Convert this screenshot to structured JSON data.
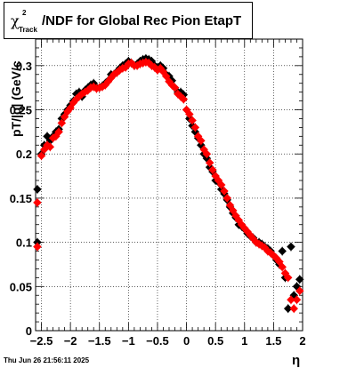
{
  "title": {
    "chi_symbol": "χ",
    "superscript": "2",
    "subscript": "Track",
    "main": "/NDF for Global Rec Pion EtapT"
  },
  "footer_text": "Thu Jun 26 21:56:11 2025",
  "chart_data": {
    "type": "scatter",
    "title": "χ²_Track/NDF for Global Rec Pion EtapT",
    "xlabel": "η",
    "ylabel": "pT/|q| (GeV/c",
    "xlim": [
      -2.6,
      2.0
    ],
    "ylim": [
      0.0,
      0.33
    ],
    "grid": true,
    "x_ticks": [
      -2.5,
      -2,
      -1.5,
      -1,
      -0.5,
      0,
      0.5,
      1,
      1.5,
      2
    ],
    "x_tick_labels": [
      "−2.5",
      "−2",
      "−1.5",
      "−1",
      "−0.5",
      "0",
      "0.5",
      "1",
      "1.5",
      "2"
    ],
    "y_ticks": [
      0,
      0.05,
      0.1,
      0.15,
      0.2,
      0.25,
      0.3
    ],
    "y_tick_labels": [
      "0",
      "0.05",
      "0.1",
      "0.15",
      "0.2",
      "0.25",
      "0.3"
    ],
    "colors": {
      "series_a": "#000000",
      "series_b": "#ff0000"
    },
    "series": [
      {
        "color": "black",
        "marker": "diamond",
        "x": [
          -2.57,
          -2.57,
          -2.5,
          -2.45,
          -2.4,
          -2.35,
          -2.3,
          -2.25,
          -2.2,
          -2.15,
          -2.1,
          -2.05,
          -2.0,
          -1.95,
          -1.9,
          -1.85,
          -1.8,
          -1.75,
          -1.7,
          -1.65,
          -1.6,
          -1.55,
          -1.5,
          -1.45,
          -1.4,
          -1.35,
          -1.3,
          -1.25,
          -1.2,
          -1.15,
          -1.1,
          -1.05,
          -1.0,
          -0.95,
          -0.9,
          -0.85,
          -0.8,
          -0.75,
          -0.7,
          -0.65,
          -0.6,
          -0.55,
          -0.5,
          -0.45,
          -0.4,
          -0.35,
          -0.3,
          -0.25,
          -0.2,
          -0.15,
          -0.1,
          -0.05,
          0.0,
          0.05,
          0.1,
          0.15,
          0.2,
          0.25,
          0.3,
          0.35,
          0.4,
          0.45,
          0.5,
          0.55,
          0.6,
          0.65,
          0.7,
          0.75,
          0.8,
          0.85,
          0.9,
          0.95,
          1.0,
          1.05,
          1.1,
          1.15,
          1.2,
          1.25,
          1.3,
          1.35,
          1.4,
          1.45,
          1.5,
          1.55,
          1.6,
          1.65,
          1.7,
          1.75,
          1.8,
          1.85,
          1.9,
          1.95
        ],
        "y": [
          0.16,
          0.1,
          0.2,
          0.21,
          0.22,
          0.215,
          0.22,
          0.225,
          0.228,
          0.24,
          0.245,
          0.25,
          0.255,
          0.26,
          0.268,
          0.27,
          0.265,
          0.272,
          0.275,
          0.278,
          0.28,
          0.275,
          0.275,
          0.277,
          0.28,
          0.283,
          0.29,
          0.29,
          0.293,
          0.297,
          0.3,
          0.302,
          0.305,
          0.303,
          0.3,
          0.302,
          0.305,
          0.307,
          0.308,
          0.307,
          0.305,
          0.3,
          0.298,
          0.3,
          0.297,
          0.29,
          0.288,
          0.283,
          0.275,
          0.27,
          0.27,
          0.267,
          0.25,
          0.24,
          0.232,
          0.225,
          0.218,
          0.21,
          0.2,
          0.195,
          0.185,
          0.18,
          0.17,
          0.168,
          0.16,
          0.155,
          0.148,
          0.14,
          0.133,
          0.128,
          0.12,
          0.118,
          0.115,
          0.11,
          0.107,
          0.105,
          0.1,
          0.1,
          0.098,
          0.095,
          0.093,
          0.09,
          0.085,
          0.08,
          0.075,
          0.09,
          0.06,
          0.025,
          0.095,
          0.04,
          0.05,
          0.058
        ]
      },
      {
        "color": "red",
        "marker": "diamond",
        "x": [
          -2.57,
          -2.57,
          -2.5,
          -2.45,
          -2.4,
          -2.35,
          -2.3,
          -2.25,
          -2.2,
          -2.15,
          -2.1,
          -2.05,
          -2.0,
          -1.95,
          -1.9,
          -1.85,
          -1.8,
          -1.75,
          -1.7,
          -1.65,
          -1.6,
          -1.55,
          -1.5,
          -1.45,
          -1.4,
          -1.35,
          -1.3,
          -1.25,
          -1.2,
          -1.15,
          -1.1,
          -1.05,
          -1.0,
          -0.95,
          -0.9,
          -0.85,
          -0.8,
          -0.75,
          -0.7,
          -0.65,
          -0.6,
          -0.55,
          -0.5,
          -0.45,
          -0.4,
          -0.35,
          -0.3,
          -0.25,
          -0.2,
          -0.15,
          -0.1,
          -0.05,
          0.0,
          0.05,
          0.1,
          0.15,
          0.2,
          0.25,
          0.3,
          0.35,
          0.4,
          0.45,
          0.5,
          0.55,
          0.6,
          0.65,
          0.7,
          0.75,
          0.8,
          0.85,
          0.9,
          0.95,
          1.0,
          1.05,
          1.1,
          1.15,
          1.2,
          1.25,
          1.3,
          1.35,
          1.4,
          1.45,
          1.5,
          1.55,
          1.6,
          1.65,
          1.7,
          1.75,
          1.8,
          1.85,
          1.9,
          1.95
        ],
        "y": [
          0.145,
          0.095,
          0.198,
          0.205,
          0.21,
          0.208,
          0.218,
          0.22,
          0.225,
          0.235,
          0.242,
          0.248,
          0.252,
          0.258,
          0.262,
          0.265,
          0.268,
          0.27,
          0.272,
          0.275,
          0.276,
          0.274,
          0.275,
          0.276,
          0.278,
          0.282,
          0.286,
          0.29,
          0.292,
          0.295,
          0.297,
          0.298,
          0.302,
          0.303,
          0.3,
          0.3,
          0.302,
          0.303,
          0.304,
          0.303,
          0.3,
          0.298,
          0.295,
          0.297,
          0.293,
          0.288,
          0.282,
          0.278,
          0.275,
          0.268,
          0.265,
          0.262,
          0.25,
          0.245,
          0.238,
          0.23,
          0.22,
          0.215,
          0.205,
          0.2,
          0.19,
          0.182,
          0.175,
          0.17,
          0.165,
          0.158,
          0.15,
          0.142,
          0.136,
          0.13,
          0.125,
          0.12,
          0.116,
          0.112,
          0.108,
          0.104,
          0.1,
          0.098,
          0.096,
          0.094,
          0.09,
          0.088,
          0.085,
          0.082,
          0.078,
          0.072,
          0.065,
          0.06,
          0.035,
          0.025,
          0.035,
          0.045
        ]
      }
    ]
  }
}
